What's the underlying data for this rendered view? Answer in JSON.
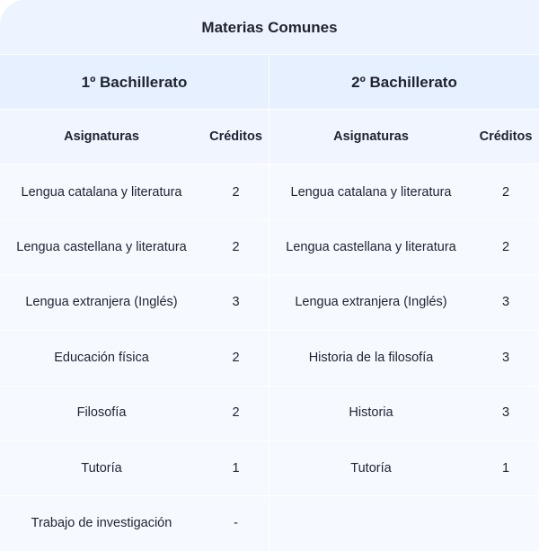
{
  "title": "Materias Comunes",
  "years": [
    "1º Bachillerato",
    "2º Bachillerato"
  ],
  "headers": {
    "subject": "Asignaturas",
    "credits": "Créditos"
  },
  "rows": [
    {
      "left_subject": "Lengua catalana y literatura",
      "left_credits": "2",
      "right_subject": "Lengua catalana y literatura",
      "right_credits": "2"
    },
    {
      "left_subject": "Lengua castellana y literatura",
      "left_credits": "2",
      "right_subject": "Lengua castellana y literatura",
      "right_credits": "2"
    },
    {
      "left_subject": "Lengua extranjera (Inglés)",
      "left_credits": "3",
      "right_subject": "Lengua extranjera (Inglés)",
      "right_credits": "3"
    },
    {
      "left_subject": "Educación física",
      "left_credits": "2",
      "right_subject": "Historia de la filosofía",
      "right_credits": "3"
    },
    {
      "left_subject": "Filosofía",
      "left_credits": "2",
      "right_subject": "Historia",
      "right_credits": "3"
    },
    {
      "left_subject": "Tutoría",
      "left_credits": "1",
      "right_subject": "Tutoría",
      "right_credits": "1"
    },
    {
      "left_subject": "Trabajo de investigación",
      "left_credits": "-",
      "right_subject": "",
      "right_credits": ""
    }
  ]
}
